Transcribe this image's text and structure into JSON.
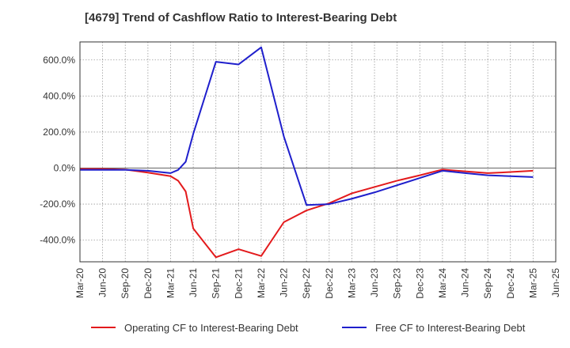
{
  "chart_data": {
    "type": "line",
    "title": "[4679]  Trend of Cashflow Ratio to Interest-Bearing Debt",
    "xlabel": "",
    "ylabel": "",
    "x_ticks": [
      "Mar-20",
      "Jun-20",
      "Sep-20",
      "Dec-20",
      "Mar-21",
      "Jun-21",
      "Sep-21",
      "Dec-21",
      "Mar-22",
      "Jun-22",
      "Sep-22",
      "Dec-22",
      "Mar-23",
      "Jun-23",
      "Sep-23",
      "Dec-23",
      "Mar-24",
      "Jun-24",
      "Sep-24",
      "Dec-24",
      "Mar-25",
      "Jun-25"
    ],
    "y_ticks": [
      -400,
      -200,
      0,
      200,
      400,
      600
    ],
    "y_tick_labels": [
      "-400.0%",
      "-200.0%",
      "0.0%",
      "200.0%",
      "400.0%",
      "600.0%"
    ],
    "ylim": [
      -520,
      700
    ],
    "xlim": [
      "2020-03",
      "2025-06"
    ],
    "grid": true,
    "legend_position": "bottom",
    "series": [
      {
        "name": "Operating CF to Interest-Bearing Debt",
        "color": "#e31a1c",
        "points": [
          {
            "x": "2020-03",
            "y": -5
          },
          {
            "x": "2020-06",
            "y": -5
          },
          {
            "x": "2020-09",
            "y": -8
          },
          {
            "x": "2020-12",
            "y": -25
          },
          {
            "x": "2021-03",
            "y": -45
          },
          {
            "x": "2021-04",
            "y": -70
          },
          {
            "x": "2021-05",
            "y": -130
          },
          {
            "x": "2021-06",
            "y": -335
          },
          {
            "x": "2021-09",
            "y": -495
          },
          {
            "x": "2021-12",
            "y": -450
          },
          {
            "x": "2022-03",
            "y": -488
          },
          {
            "x": "2022-06",
            "y": -300
          },
          {
            "x": "2022-09",
            "y": -235
          },
          {
            "x": "2022-12",
            "y": -195
          },
          {
            "x": "2023-03",
            "y": -140
          },
          {
            "x": "2023-06",
            "y": -105
          },
          {
            "x": "2023-09",
            "y": -70
          },
          {
            "x": "2023-12",
            "y": -40
          },
          {
            "x": "2024-03",
            "y": -8
          },
          {
            "x": "2024-06",
            "y": -18
          },
          {
            "x": "2024-09",
            "y": -28
          },
          {
            "x": "2024-12",
            "y": -22
          },
          {
            "x": "2025-03",
            "y": -15
          }
        ]
      },
      {
        "name": "Free CF to Interest-Bearing Debt",
        "color": "#1f1fcc",
        "points": [
          {
            "x": "2020-03",
            "y": -10
          },
          {
            "x": "2020-06",
            "y": -10
          },
          {
            "x": "2020-09",
            "y": -10
          },
          {
            "x": "2020-12",
            "y": -15
          },
          {
            "x": "2021-03",
            "y": -28
          },
          {
            "x": "2021-04",
            "y": -10
          },
          {
            "x": "2021-05",
            "y": 35
          },
          {
            "x": "2021-06",
            "y": 190
          },
          {
            "x": "2021-09",
            "y": 590
          },
          {
            "x": "2021-12",
            "y": 575
          },
          {
            "x": "2022-03",
            "y": 670
          },
          {
            "x": "2022-06",
            "y": 175
          },
          {
            "x": "2022-09",
            "y": -205
          },
          {
            "x": "2022-12",
            "y": -200
          },
          {
            "x": "2023-03",
            "y": -170
          },
          {
            "x": "2023-06",
            "y": -135
          },
          {
            "x": "2023-09",
            "y": -95
          },
          {
            "x": "2023-12",
            "y": -55
          },
          {
            "x": "2024-03",
            "y": -15
          },
          {
            "x": "2024-06",
            "y": -28
          },
          {
            "x": "2024-09",
            "y": -40
          },
          {
            "x": "2024-12",
            "y": -45
          },
          {
            "x": "2025-03",
            "y": -50
          }
        ]
      }
    ]
  }
}
